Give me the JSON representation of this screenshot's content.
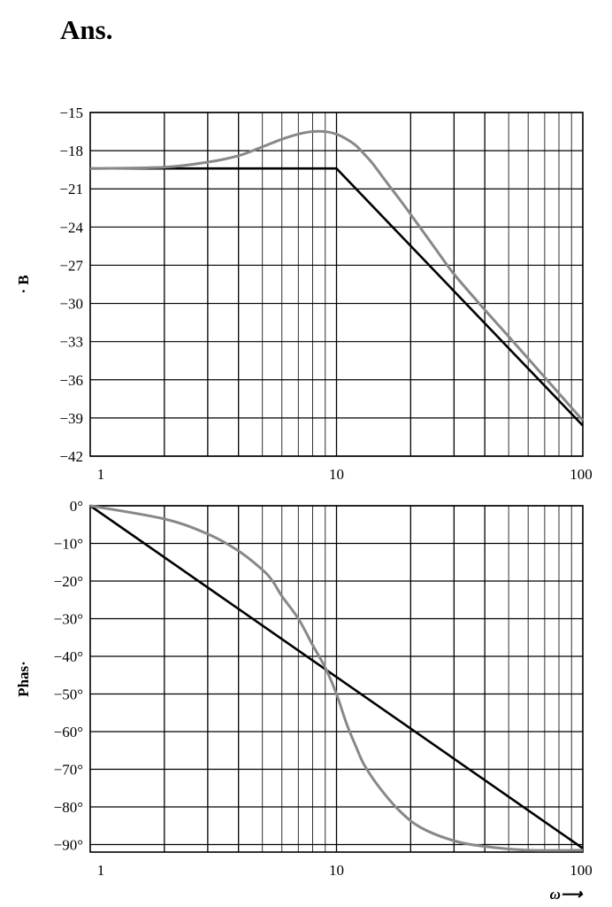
{
  "title": "Ans.",
  "chart_data": [
    {
      "type": "line",
      "ylabel": "· B",
      "x_scale": "log",
      "xlim": [
        1,
        100
      ],
      "ylim": [
        -42,
        -15
      ],
      "x_ticks": [
        "1",
        "10",
        "100"
      ],
      "y_ticks": [
        "−15",
        "−18",
        "−21",
        "−24",
        "−27",
        "−30",
        "−33",
        "−36",
        "−39",
        "−42"
      ],
      "y_tick_values": [
        -15,
        -18,
        -21,
        -24,
        -27,
        -30,
        -33,
        -36,
        -39,
        -42
      ],
      "grid": true,
      "series": [
        {
          "style": "asymptote",
          "color": "#000000",
          "x": [
            1,
            10,
            100
          ],
          "y": [
            -19.4,
            -19.4,
            -39.6
          ]
        },
        {
          "style": "exact",
          "color": "#888888",
          "x": [
            1,
            2,
            3,
            4,
            5,
            6,
            7,
            8,
            9,
            10,
            11,
            12,
            13,
            14,
            16,
            18,
            20,
            25,
            30,
            40,
            50,
            70,
            100
          ],
          "y": [
            -19.4,
            -19.3,
            -18.9,
            -18.4,
            -17.7,
            -17.1,
            -16.7,
            -16.5,
            -16.5,
            -16.7,
            -17.1,
            -17.6,
            -18.3,
            -19.0,
            -20.5,
            -21.8,
            -23.0,
            -25.6,
            -27.7,
            -30.5,
            -32.6,
            -35.8,
            -39.2
          ]
        }
      ]
    },
    {
      "type": "line",
      "ylabel": "Phas·",
      "xlabel": "ω⟶",
      "x_scale": "log",
      "xlim": [
        1,
        100
      ],
      "ylim": [
        -92,
        0
      ],
      "x_ticks": [
        "1",
        "10",
        "100"
      ],
      "y_ticks": [
        "0°",
        "−10°",
        "−20°",
        "−30°",
        "−40°",
        "−50°",
        "−60°",
        "−70°",
        "−80°",
        "−90°"
      ],
      "y_tick_values": [
        0,
        -10,
        -20,
        -30,
        -40,
        -50,
        -60,
        -70,
        -80,
        -90
      ],
      "grid": true,
      "series": [
        {
          "style": "asymptote",
          "color": "#000000",
          "x": [
            1,
            100
          ],
          "y": [
            0,
            -91
          ]
        },
        {
          "style": "exact",
          "color": "#888888",
          "x": [
            1,
            2,
            3,
            4,
            5,
            5.5,
            6,
            7,
            8,
            9,
            10,
            11,
            12,
            13,
            15,
            18,
            22,
            30,
            40,
            60,
            100
          ],
          "y": [
            0,
            -3.5,
            -7.5,
            -12,
            -17,
            -20,
            -24,
            -30,
            -37,
            -43,
            -50,
            -58,
            -64,
            -69,
            -75,
            -81,
            -85.5,
            -89,
            -90.5,
            -91.5,
            -91.5
          ]
        }
      ]
    }
  ]
}
